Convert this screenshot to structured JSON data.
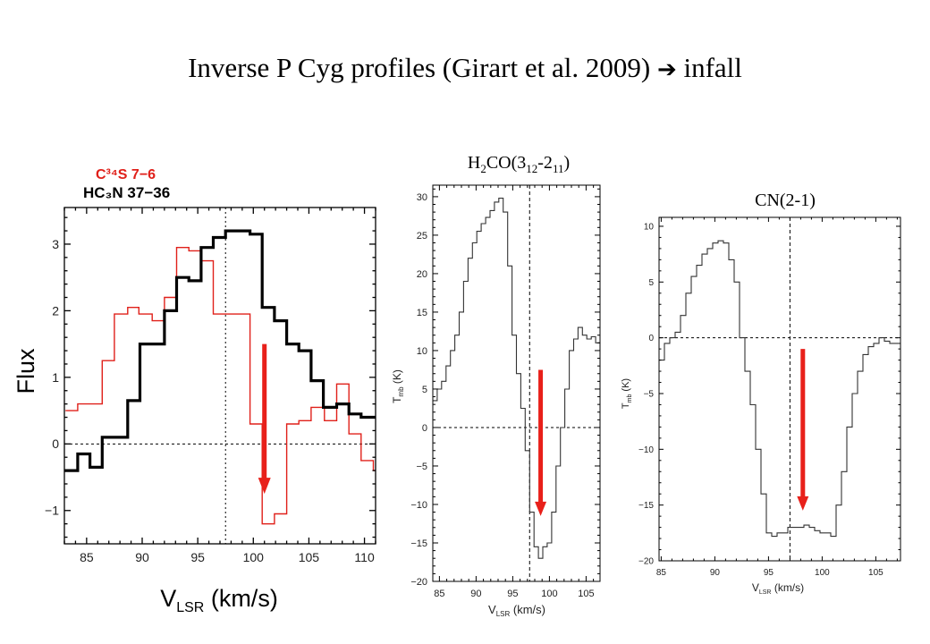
{
  "slide": {
    "title_prefix": "Inverse P Cyg profiles (Girart et al. 2009)",
    "title_arrow": "➔",
    "title_suffix": "infall"
  },
  "chart_data": [
    {
      "type": "line",
      "title": "",
      "xlabel": "V_LSR (km/s)",
      "ylabel": "Flux",
      "xlim": [
        83,
        111
      ],
      "ylim": [
        -1.5,
        3.55
      ],
      "xticks": [
        85,
        90,
        95,
        100,
        105,
        110
      ],
      "yticks": [
        -1,
        0,
        1,
        2,
        3
      ],
      "ytick_labels": [
        "−1",
        "0",
        "1",
        "2",
        "3"
      ],
      "legend": [
        {
          "text": "C³⁴S 7−6",
          "color": "#e0201a"
        },
        {
          "text": "HC₃N 37−36",
          "color": "#000000"
        }
      ],
      "vline": 97.5,
      "hline": 0,
      "arrow": {
        "x": 101,
        "from": 1.5,
        "to": -0.75,
        "color": "#e8201a"
      },
      "series": [
        {
          "name": "C³⁴S 7−6",
          "color": "#e0201a",
          "steps": [
            [
              83.1,
              0.5
            ],
            [
              84.2,
              0.6
            ],
            [
              86.4,
              1.25
            ],
            [
              87.5,
              1.95
            ],
            [
              88.7,
              2.05
            ],
            [
              89.7,
              1.95
            ],
            [
              90.9,
              1.85
            ],
            [
              92,
              2.2
            ],
            [
              93.1,
              2.95
            ],
            [
              94.2,
              2.9
            ],
            [
              95.3,
              2.75
            ],
            [
              96.4,
              1.95
            ],
            [
              97.5,
              1.95
            ],
            [
              98.6,
              1.95
            ],
            [
              99.7,
              0.3
            ],
            [
              100.8,
              -1.2
            ],
            [
              101.9,
              -1.05
            ],
            [
              103,
              0.3
            ],
            [
              104.1,
              0.35
            ],
            [
              105.2,
              0.55
            ],
            [
              106.4,
              0.35
            ],
            [
              107.5,
              0.9
            ],
            [
              108.6,
              0.15
            ],
            [
              109.7,
              -0.25
            ],
            [
              110.8,
              -0.4
            ]
          ],
          "end": 111
        },
        {
          "name": "HC₃N 37−36",
          "color": "#000000",
          "steps": [
            [
              83,
              -0.4
            ],
            [
              84.2,
              -0.15
            ],
            [
              85.3,
              -0.35
            ],
            [
              86.4,
              0.1
            ],
            [
              87.5,
              0.1
            ],
            [
              88.7,
              0.65
            ],
            [
              89.8,
              1.5
            ],
            [
              90.9,
              1.5
            ],
            [
              92,
              2.0
            ],
            [
              93.1,
              2.5
            ],
            [
              94.2,
              2.45
            ],
            [
              95.3,
              2.95
            ],
            [
              96.4,
              3.1
            ],
            [
              97.5,
              3.2
            ],
            [
              98.6,
              3.2
            ],
            [
              99.7,
              3.15
            ],
            [
              100.8,
              2.05
            ],
            [
              101.9,
              1.85
            ],
            [
              103,
              1.5
            ],
            [
              104.1,
              1.4
            ],
            [
              105.2,
              0.95
            ],
            [
              106.3,
              0.55
            ],
            [
              107.5,
              0.6
            ],
            [
              108.6,
              0.45
            ],
            [
              109.7,
              0.4
            ]
          ],
          "end": 111
        }
      ]
    },
    {
      "type": "line",
      "title": "H₂CO(3₁₂-2₁₁)",
      "xlabel": "V_LSR (km/s)",
      "ylabel": "T_mb (K)",
      "xlim": [
        84.1,
        106.9
      ],
      "ylim": [
        -20,
        31.5
      ],
      "xticks": [
        85,
        90,
        95,
        100,
        105
      ],
      "yticks": [
        -20,
        -15,
        -10,
        -5,
        0,
        5,
        10,
        15,
        20,
        25,
        30
      ],
      "ytick_labels": [
        "−20",
        "−15",
        "−10",
        "−5",
        "0",
        "5",
        "10",
        "15",
        "20",
        "25",
        "30"
      ],
      "vline": 97.3,
      "hline": 0,
      "arrow": {
        "x": 98.8,
        "from": 7.5,
        "to": -11.5,
        "color": "#e8201a"
      },
      "series": [
        {
          "name": "",
          "color": "#333333",
          "steps": [
            [
              84.1,
              3.5
            ],
            [
              84.7,
              5
            ],
            [
              85.3,
              6
            ],
            [
              85.9,
              8
            ],
            [
              86.5,
              10
            ],
            [
              87.1,
              12
            ],
            [
              87.7,
              15
            ],
            [
              88.3,
              19
            ],
            [
              88.9,
              22
            ],
            [
              89.5,
              24
            ],
            [
              90.1,
              25.5
            ],
            [
              90.7,
              26.5
            ],
            [
              91.3,
              27.3
            ],
            [
              91.9,
              28.2
            ],
            [
              92.5,
              29.3
            ],
            [
              93.1,
              29.8
            ],
            [
              93.7,
              28
            ],
            [
              94.3,
              21
            ],
            [
              94.9,
              12
            ],
            [
              95.5,
              7
            ],
            [
              96.1,
              2.5
            ],
            [
              96.7,
              -3
            ],
            [
              97.3,
              -11
            ],
            [
              97.9,
              -15.5
            ],
            [
              98.5,
              -17
            ],
            [
              99.1,
              -15.5
            ],
            [
              99.7,
              -15
            ],
            [
              100.3,
              -11
            ],
            [
              100.9,
              -5
            ],
            [
              101.5,
              0
            ],
            [
              102.1,
              5
            ],
            [
              102.7,
              10
            ],
            [
              103.3,
              11.5
            ],
            [
              103.9,
              13
            ],
            [
              104.5,
              12
            ],
            [
              105.1,
              11.5
            ],
            [
              105.7,
              11.8
            ],
            [
              106.3,
              11
            ]
          ],
          "end": 106.9
        }
      ]
    },
    {
      "type": "line",
      "title": "CN(2-1)",
      "xlabel": "V_LSR (km/s)",
      "ylabel": "T_mb (K)",
      "xlim": [
        84.8,
        107.3
      ],
      "ylim": [
        -20,
        10.8
      ],
      "xticks": [
        85,
        90,
        95,
        100,
        105
      ],
      "yticks": [
        -20,
        -15,
        -10,
        -5,
        0,
        5,
        10
      ],
      "ytick_labels": [
        "−20",
        "−15",
        "−10",
        "−5",
        "0",
        "5",
        "10"
      ],
      "vline": 97,
      "hline": 0,
      "arrow": {
        "x": 98.2,
        "from": -1,
        "to": -15.5,
        "color": "#e8201a"
      },
      "series": [
        {
          "name": "",
          "color": "#333333",
          "steps": [
            [
              84.8,
              -2
            ],
            [
              85.3,
              -0.5
            ],
            [
              85.8,
              0
            ],
            [
              86.3,
              0.5
            ],
            [
              86.8,
              2
            ],
            [
              87.3,
              4
            ],
            [
              87.8,
              5.5
            ],
            [
              88.3,
              6.5
            ],
            [
              88.8,
              7.5
            ],
            [
              89.3,
              8
            ],
            [
              89.8,
              8.5
            ],
            [
              90.3,
              8.7
            ],
            [
              90.8,
              8.5
            ],
            [
              91.3,
              7
            ],
            [
              91.8,
              5
            ],
            [
              92.3,
              0
            ],
            [
              92.8,
              -3
            ],
            [
              93.3,
              -6
            ],
            [
              93.8,
              -10
            ],
            [
              94.3,
              -14
            ],
            [
              94.8,
              -17.5
            ],
            [
              95.3,
              -17.8
            ],
            [
              95.8,
              -17.5
            ],
            [
              96.3,
              -17.5
            ],
            [
              96.8,
              -17
            ],
            [
              97.3,
              -17
            ],
            [
              97.8,
              -17
            ],
            [
              98.3,
              -16.8
            ],
            [
              98.8,
              -17
            ],
            [
              99.3,
              -17.3
            ],
            [
              99.8,
              -17.5
            ],
            [
              100.3,
              -17.5
            ],
            [
              100.8,
              -17.8
            ],
            [
              101.3,
              -15
            ],
            [
              101.8,
              -12
            ],
            [
              102.3,
              -8
            ],
            [
              102.8,
              -5
            ],
            [
              103.3,
              -3
            ],
            [
              103.8,
              -1.5
            ],
            [
              104.3,
              -0.8
            ],
            [
              104.8,
              -0.5
            ],
            [
              105.3,
              0
            ],
            [
              105.8,
              -0.3
            ],
            [
              106.3,
              -0.5
            ]
          ],
          "end": 107.3
        }
      ]
    }
  ]
}
